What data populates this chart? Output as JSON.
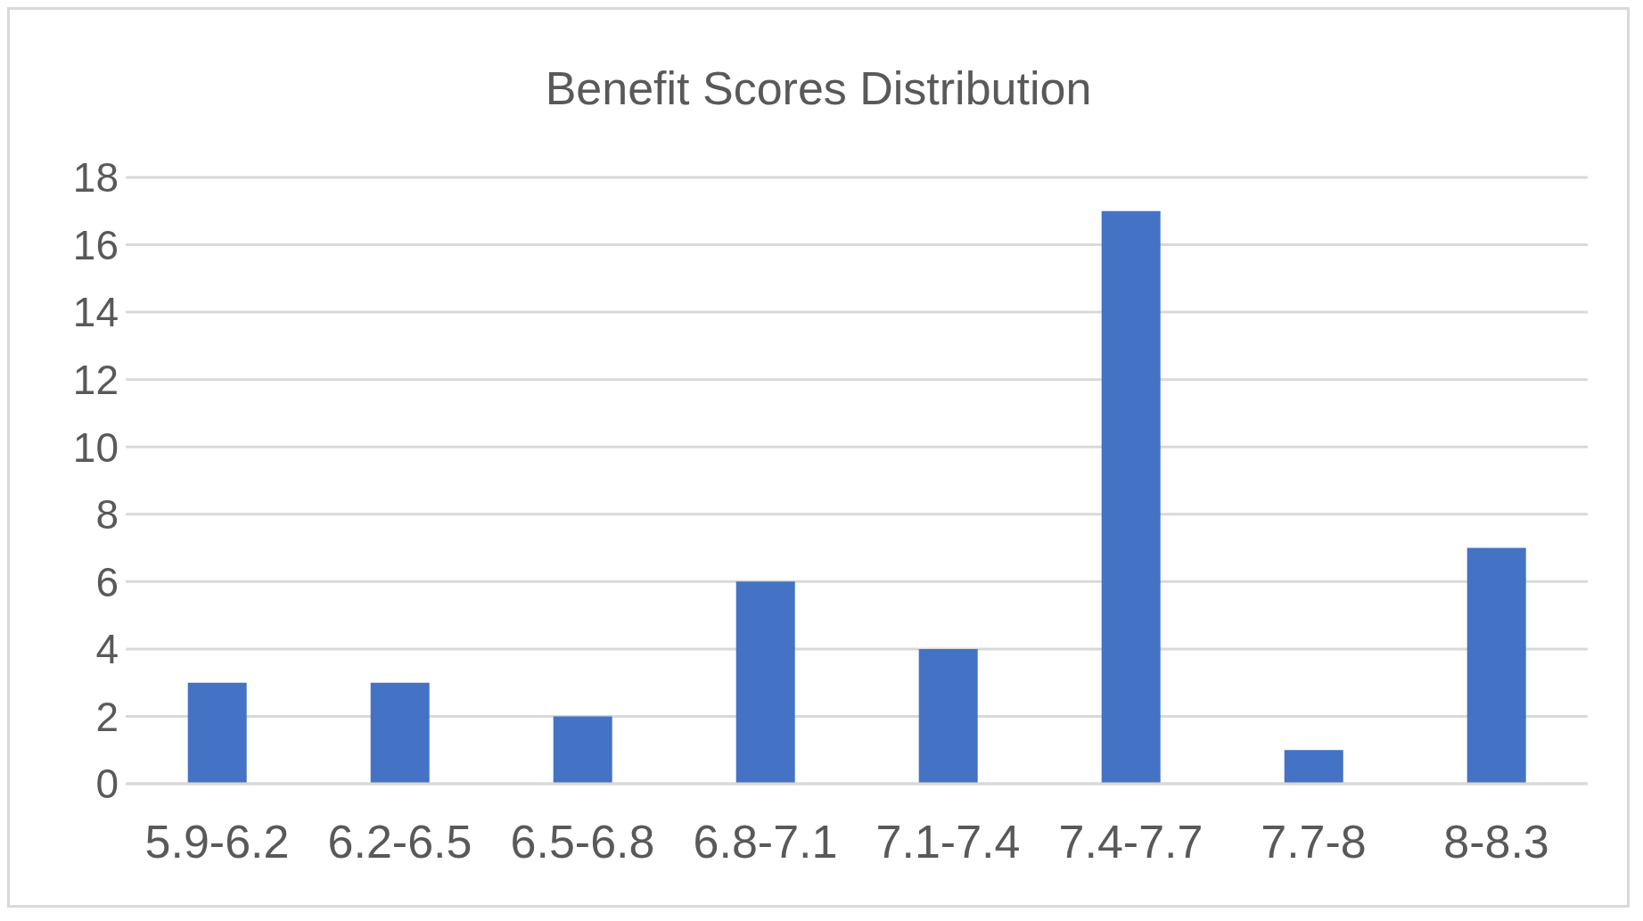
{
  "chart_data": {
    "type": "bar",
    "title": "Benefit Scores Distribution",
    "categories": [
      "5.9-6.2",
      "6.2-6.5",
      "6.5-6.8",
      "6.8-7.1",
      "7.1-7.4",
      "7.4-7.7",
      "7.7-8",
      "8-8.3"
    ],
    "values": [
      3,
      3,
      2,
      6,
      4,
      17,
      1,
      7
    ],
    "color": "#4472c4",
    "ylim": [
      0,
      18
    ],
    "yticks": [
      0,
      2,
      4,
      6,
      8,
      10,
      12,
      14,
      16,
      18
    ],
    "grid": "y"
  }
}
